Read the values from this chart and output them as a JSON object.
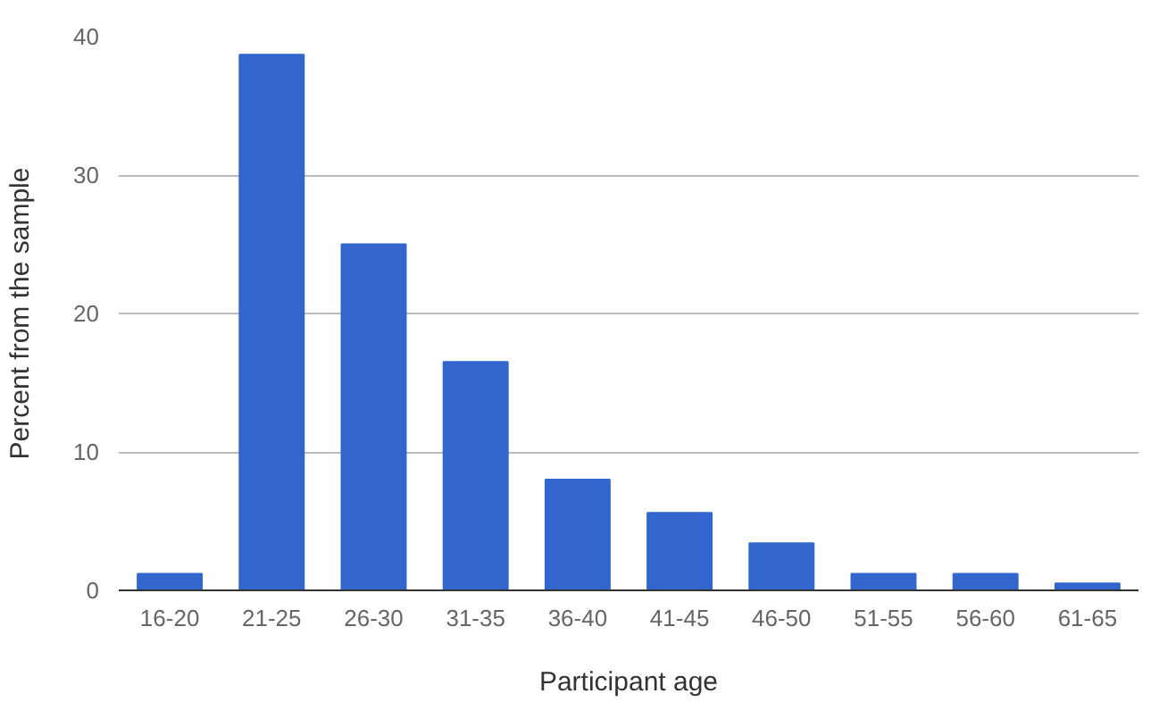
{
  "chart_data": {
    "type": "bar",
    "xlabel": "Participant age",
    "ylabel": "Percent from the sample",
    "categories": [
      "16-20",
      "21-25",
      "26-30",
      "31-35",
      "36-40",
      "41-45",
      "46-50",
      "51-55",
      "56-60",
      "61-65"
    ],
    "values": [
      1.2,
      38.7,
      25.0,
      16.5,
      8.0,
      5.6,
      3.4,
      1.2,
      1.2,
      0.5
    ],
    "color": "#3366cc",
    "ylim": [
      0,
      40
    ],
    "yticks": [
      0,
      10,
      20,
      30,
      40
    ],
    "grid": "y"
  }
}
